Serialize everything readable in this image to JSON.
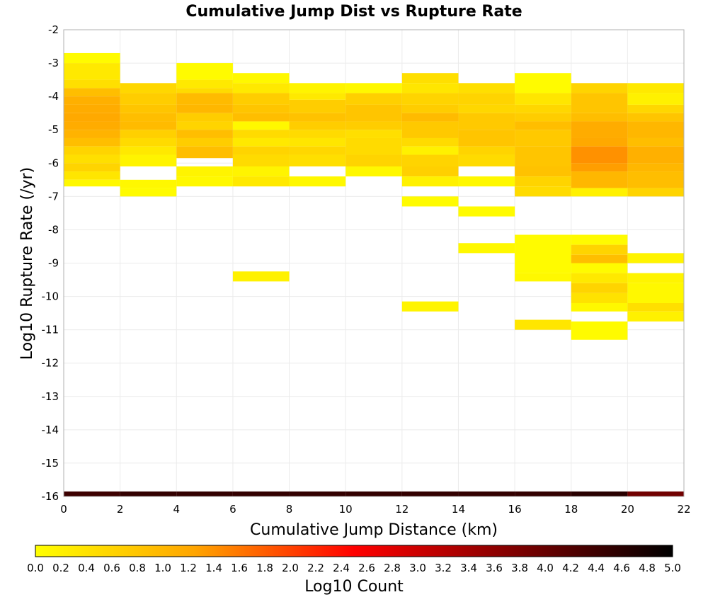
{
  "chart_data": {
    "type": "heatmap",
    "title": "Cumulative Jump Dist vs Rupture Rate",
    "xlabel": "Cumulative Jump Distance (km)",
    "ylabel": "Log10 Rupture Rate (/yr)",
    "xlim": [
      0,
      22
    ],
    "ylim": [
      -16,
      -2
    ],
    "x_bin_width": 2,
    "y_bin_height": 0.25,
    "x_ticks": [
      "0",
      "2",
      "4",
      "6",
      "8",
      "10",
      "12",
      "14",
      "16",
      "18",
      "20",
      "22"
    ],
    "y_ticks": [
      "-2",
      "-3",
      "-4",
      "-5",
      "-6",
      "-7",
      "-8",
      "-9",
      "-10",
      "-11",
      "-12",
      "-13",
      "-14",
      "-15",
      "-16"
    ],
    "grid": true,
    "colorbar": {
      "label": "Log10 Count",
      "range": [
        0,
        5
      ],
      "ticks": [
        "0.0",
        "0.2",
        "0.4",
        "0.6",
        "0.8",
        "1.0",
        "1.2",
        "1.4",
        "1.6",
        "1.8",
        "2.0",
        "2.2",
        "2.4",
        "2.6",
        "2.8",
        "3.0",
        "3.2",
        "3.4",
        "3.6",
        "3.8",
        "4.0",
        "4.2",
        "4.4",
        "4.6",
        "4.8",
        "5.0"
      ],
      "colors": [
        "#ffff00",
        "#ffa500",
        "#ff0000",
        "#800000",
        "#000000"
      ]
    },
    "columns": [
      {
        "x": [
          0,
          2
        ],
        "cells": [
          {
            "y0": -3.0,
            "y1": -2.7,
            "v": 0.05
          },
          {
            "y0": -3.5,
            "y1": -3.0,
            "v": 0.3
          },
          {
            "y0": -3.75,
            "y1": -3.5,
            "v": 0.45
          },
          {
            "y0": -4.0,
            "y1": -3.75,
            "v": 0.9
          },
          {
            "y0": -4.25,
            "y1": -4.0,
            "v": 1.1
          },
          {
            "y0": -4.5,
            "y1": -4.25,
            "v": 1.15
          },
          {
            "y0": -4.75,
            "y1": -4.5,
            "v": 1.2
          },
          {
            "y0": -5.0,
            "y1": -4.75,
            "v": 1.15
          },
          {
            "y0": -5.25,
            "y1": -5.0,
            "v": 1.05
          },
          {
            "y0": -5.5,
            "y1": -5.25,
            "v": 0.9
          },
          {
            "y0": -5.75,
            "y1": -5.5,
            "v": 0.6
          },
          {
            "y0": -6.0,
            "y1": -5.75,
            "v": 0.45
          },
          {
            "y0": -6.25,
            "y1": -6.0,
            "v": 0.6
          },
          {
            "y0": -6.5,
            "y1": -6.25,
            "v": 0.35
          },
          {
            "y0": -6.7,
            "y1": -6.5,
            "v": 0.1
          },
          {
            "y0": -16.0,
            "y1": -15.85,
            "v": 4.4
          }
        ]
      },
      {
        "x": [
          2,
          4
        ],
        "cells": [
          {
            "y0": -3.9,
            "y1": -3.6,
            "v": 0.55
          },
          {
            "y0": -4.25,
            "y1": -3.9,
            "v": 0.7
          },
          {
            "y0": -4.5,
            "y1": -4.25,
            "v": 0.8
          },
          {
            "y0": -4.75,
            "y1": -4.5,
            "v": 0.9
          },
          {
            "y0": -5.0,
            "y1": -4.75,
            "v": 0.95
          },
          {
            "y0": -5.25,
            "y1": -5.0,
            "v": 0.65
          },
          {
            "y0": -5.5,
            "y1": -5.25,
            "v": 0.5
          },
          {
            "y0": -5.75,
            "y1": -5.5,
            "v": 0.3
          },
          {
            "y0": -6.1,
            "y1": -5.75,
            "v": 0.15
          },
          {
            "y0": -6.75,
            "y1": -6.5,
            "v": 0.1
          },
          {
            "y0": -7.0,
            "y1": -6.75,
            "v": 0.05
          },
          {
            "y0": -16.0,
            "y1": -15.85,
            "v": 4.5
          }
        ]
      },
      {
        "x": [
          4,
          6
        ],
        "cells": [
          {
            "y0": -3.5,
            "y1": -3.0,
            "v": 0.05
          },
          {
            "y0": -3.75,
            "y1": -3.5,
            "v": 0.3
          },
          {
            "y0": -3.9,
            "y1": -3.75,
            "v": 0.5
          },
          {
            "y0": -4.25,
            "y1": -3.9,
            "v": 0.95
          },
          {
            "y0": -4.5,
            "y1": -4.25,
            "v": 1.0
          },
          {
            "y0": -4.75,
            "y1": -4.5,
            "v": 0.7
          },
          {
            "y0": -5.0,
            "y1": -4.75,
            "v": 0.6
          },
          {
            "y0": -5.25,
            "y1": -5.0,
            "v": 0.9
          },
          {
            "y0": -5.5,
            "y1": -5.25,
            "v": 0.7
          },
          {
            "y0": -5.85,
            "y1": -5.5,
            "v": 0.9
          },
          {
            "y0": -6.4,
            "y1": -6.1,
            "v": 0.15
          },
          {
            "y0": -6.7,
            "y1": -6.4,
            "v": 0.1
          },
          {
            "y0": -16.0,
            "y1": -15.85,
            "v": 4.5
          }
        ]
      },
      {
        "x": [
          6,
          8
        ],
        "cells": [
          {
            "y0": -3.6,
            "y1": -3.3,
            "v": 0.1
          },
          {
            "y0": -3.9,
            "y1": -3.6,
            "v": 0.3
          },
          {
            "y0": -4.25,
            "y1": -3.9,
            "v": 0.7
          },
          {
            "y0": -4.5,
            "y1": -4.25,
            "v": 0.8
          },
          {
            "y0": -4.75,
            "y1": -4.5,
            "v": 0.9
          },
          {
            "y0": -5.0,
            "y1": -4.75,
            "v": 0.1
          },
          {
            "y0": -5.25,
            "y1": -5.0,
            "v": 0.5
          },
          {
            "y0": -5.5,
            "y1": -5.25,
            "v": 0.3
          },
          {
            "y0": -5.75,
            "y1": -5.5,
            "v": 0.6
          },
          {
            "y0": -6.1,
            "y1": -5.75,
            "v": 0.5
          },
          {
            "y0": -6.4,
            "y1": -6.1,
            "v": 0.15
          },
          {
            "y0": -6.7,
            "y1": -6.4,
            "v": 0.3
          },
          {
            "y0": -9.55,
            "y1": -9.25,
            "v": 0.2
          },
          {
            "y0": -16.0,
            "y1": -15.85,
            "v": 4.5
          }
        ]
      },
      {
        "x": [
          8,
          10
        ],
        "cells": [
          {
            "y0": -3.9,
            "y1": -3.6,
            "v": 0.15
          },
          {
            "y0": -4.1,
            "y1": -3.9,
            "v": 0.3
          },
          {
            "y0": -4.5,
            "y1": -4.1,
            "v": 0.7
          },
          {
            "y0": -4.75,
            "y1": -4.5,
            "v": 0.85
          },
          {
            "y0": -5.0,
            "y1": -4.75,
            "v": 0.7
          },
          {
            "y0": -5.25,
            "y1": -5.0,
            "v": 0.5
          },
          {
            "y0": -5.5,
            "y1": -5.25,
            "v": 0.35
          },
          {
            "y0": -5.75,
            "y1": -5.5,
            "v": 0.55
          },
          {
            "y0": -6.1,
            "y1": -5.75,
            "v": 0.45
          },
          {
            "y0": -6.7,
            "y1": -6.4,
            "v": 0.1
          },
          {
            "y0": -16.0,
            "y1": -15.85,
            "v": 4.5
          }
        ]
      },
      {
        "x": [
          10,
          12
        ],
        "cells": [
          {
            "y0": -3.9,
            "y1": -3.6,
            "v": 0.1
          },
          {
            "y0": -4.25,
            "y1": -3.9,
            "v": 0.65
          },
          {
            "y0": -4.75,
            "y1": -4.25,
            "v": 0.8
          },
          {
            "y0": -5.0,
            "y1": -4.75,
            "v": 0.7
          },
          {
            "y0": -5.25,
            "y1": -5.0,
            "v": 0.45
          },
          {
            "y0": -5.75,
            "y1": -5.25,
            "v": 0.5
          },
          {
            "y0": -6.1,
            "y1": -5.75,
            "v": 0.6
          },
          {
            "y0": -6.4,
            "y1": -6.1,
            "v": 0.1
          },
          {
            "y0": -16.0,
            "y1": -15.85,
            "v": 4.5
          }
        ]
      },
      {
        "x": [
          12,
          14
        ],
        "cells": [
          {
            "y0": -3.6,
            "y1": -3.3,
            "v": 0.45
          },
          {
            "y0": -3.9,
            "y1": -3.6,
            "v": 0.35
          },
          {
            "y0": -4.25,
            "y1": -3.9,
            "v": 0.6
          },
          {
            "y0": -4.5,
            "y1": -4.25,
            "v": 0.7
          },
          {
            "y0": -4.75,
            "y1": -4.5,
            "v": 0.95
          },
          {
            "y0": -5.25,
            "y1": -4.75,
            "v": 0.75
          },
          {
            "y0": -5.5,
            "y1": -5.25,
            "v": 0.5
          },
          {
            "y0": -5.75,
            "y1": -5.5,
            "v": 0.2
          },
          {
            "y0": -6.1,
            "y1": -5.75,
            "v": 0.6
          },
          {
            "y0": -6.4,
            "y1": -6.1,
            "v": 0.65
          },
          {
            "y0": -6.7,
            "y1": -6.4,
            "v": 0.2
          },
          {
            "y0": -7.3,
            "y1": -7.0,
            "v": 0.05
          },
          {
            "y0": -10.45,
            "y1": -10.15,
            "v": 0.15
          },
          {
            "y0": -16.0,
            "y1": -15.85,
            "v": 4.5
          }
        ]
      },
      {
        "x": [
          14,
          16
        ],
        "cells": [
          {
            "y0": -3.9,
            "y1": -3.6,
            "v": 0.45
          },
          {
            "y0": -4.25,
            "y1": -3.9,
            "v": 0.6
          },
          {
            "y0": -4.5,
            "y1": -4.25,
            "v": 0.55
          },
          {
            "y0": -5.0,
            "y1": -4.5,
            "v": 0.75
          },
          {
            "y0": -5.5,
            "y1": -5.0,
            "v": 0.8
          },
          {
            "y0": -5.75,
            "y1": -5.5,
            "v": 0.6
          },
          {
            "y0": -6.1,
            "y1": -5.75,
            "v": 0.5
          },
          {
            "y0": -6.7,
            "y1": -6.4,
            "v": 0.1
          },
          {
            "y0": -7.6,
            "y1": -7.3,
            "v": 0.05
          },
          {
            "y0": -8.7,
            "y1": -8.4,
            "v": 0.1
          },
          {
            "y0": -16.0,
            "y1": -15.85,
            "v": 4.5
          }
        ]
      },
      {
        "x": [
          16,
          18
        ],
        "cells": [
          {
            "y0": -3.9,
            "y1": -3.3,
            "v": 0.05
          },
          {
            "y0": -4.25,
            "y1": -3.9,
            "v": 0.35
          },
          {
            "y0": -4.5,
            "y1": -4.25,
            "v": 0.55
          },
          {
            "y0": -4.75,
            "y1": -4.5,
            "v": 0.7
          },
          {
            "y0": -5.0,
            "y1": -4.75,
            "v": 0.9
          },
          {
            "y0": -5.5,
            "y1": -5.0,
            "v": 0.75
          },
          {
            "y0": -6.1,
            "y1": -5.5,
            "v": 0.8
          },
          {
            "y0": -6.4,
            "y1": -6.1,
            "v": 0.85
          },
          {
            "y0": -6.7,
            "y1": -6.4,
            "v": 0.6
          },
          {
            "y0": -7.0,
            "y1": -6.7,
            "v": 0.5
          },
          {
            "y0": -9.3,
            "y1": -8.15,
            "v": 0.05
          },
          {
            "y0": -9.55,
            "y1": -9.3,
            "v": 0.1
          },
          {
            "y0": -11.0,
            "y1": -10.7,
            "v": 0.35
          },
          {
            "y0": -16.0,
            "y1": -15.85,
            "v": 4.5
          }
        ]
      },
      {
        "x": [
          18,
          20
        ],
        "cells": [
          {
            "y0": -3.9,
            "y1": -3.6,
            "v": 0.6
          },
          {
            "y0": -4.5,
            "y1": -3.9,
            "v": 0.8
          },
          {
            "y0": -4.75,
            "y1": -4.5,
            "v": 0.9
          },
          {
            "y0": -5.25,
            "y1": -4.75,
            "v": 1.15
          },
          {
            "y0": -5.5,
            "y1": -5.25,
            "v": 1.2
          },
          {
            "y0": -6.0,
            "y1": -5.5,
            "v": 1.4
          },
          {
            "y0": -6.25,
            "y1": -6.0,
            "v": 1.3
          },
          {
            "y0": -6.75,
            "y1": -6.25,
            "v": 1.0
          },
          {
            "y0": -7.0,
            "y1": -6.75,
            "v": 0.2
          },
          {
            "y0": -8.45,
            "y1": -8.15,
            "v": 0.05
          },
          {
            "y0": -8.75,
            "y1": -8.45,
            "v": 0.6
          },
          {
            "y0": -9.0,
            "y1": -8.75,
            "v": 0.9
          },
          {
            "y0": -9.3,
            "y1": -9.0,
            "v": 0.05
          },
          {
            "y0": -9.6,
            "y1": -9.3,
            "v": 0.3
          },
          {
            "y0": -9.9,
            "y1": -9.6,
            "v": 0.6
          },
          {
            "y0": -10.2,
            "y1": -9.9,
            "v": 0.4
          },
          {
            "y0": -10.45,
            "y1": -10.2,
            "v": 0.1
          },
          {
            "y0": -11.3,
            "y1": -10.75,
            "v": 0.05
          },
          {
            "y0": -16.0,
            "y1": -15.85,
            "v": 4.6
          }
        ]
      },
      {
        "x": [
          20,
          22
        ],
        "cells": [
          {
            "y0": -3.9,
            "y1": -3.6,
            "v": 0.3
          },
          {
            "y0": -4.25,
            "y1": -3.9,
            "v": 0.2
          },
          {
            "y0": -4.5,
            "y1": -4.25,
            "v": 0.55
          },
          {
            "y0": -4.75,
            "y1": -4.5,
            "v": 0.8
          },
          {
            "y0": -5.25,
            "y1": -4.75,
            "v": 1.0
          },
          {
            "y0": -5.5,
            "y1": -5.25,
            "v": 0.9
          },
          {
            "y0": -6.0,
            "y1": -5.5,
            "v": 1.1
          },
          {
            "y0": -6.25,
            "y1": -6.0,
            "v": 1.0
          },
          {
            "y0": -6.75,
            "y1": -6.25,
            "v": 0.9
          },
          {
            "y0": -7.0,
            "y1": -6.75,
            "v": 0.6
          },
          {
            "y0": -9.0,
            "y1": -8.7,
            "v": 0.15
          },
          {
            "y0": -9.6,
            "y1": -9.3,
            "v": 0.15
          },
          {
            "y0": -10.2,
            "y1": -9.6,
            "v": 0.1
          },
          {
            "y0": -10.45,
            "y1": -10.2,
            "v": 0.45
          },
          {
            "y0": -10.75,
            "y1": -10.45,
            "v": 0.2
          },
          {
            "y0": -16.0,
            "y1": -15.85,
            "v": 3.9
          }
        ]
      }
    ]
  }
}
